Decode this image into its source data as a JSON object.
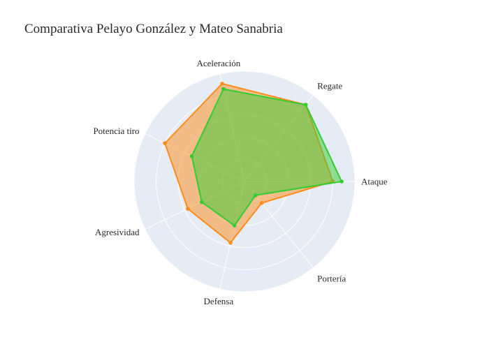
{
  "chart_data": {
    "type": "radar",
    "title": "Comparativa Pelayo González y Mateo Sanabria",
    "axes": [
      "Ataque",
      "Regate",
      "Aceleración",
      "Potencia tiro",
      "Agresividad",
      "Defensa",
      "Portería"
    ],
    "range": [
      0,
      100
    ],
    "grid": true,
    "legend": "none",
    "series": [
      {
        "values": [
          80,
          89,
          91,
          80,
          57,
          57,
          25
        ],
        "color": "#ff8c1a",
        "fill": "rgba(255,140,26,0.5)"
      },
      {
        "values": [
          88,
          89,
          86,
          53,
          43,
          41,
          16
        ],
        "color": "#33cc33",
        "fill": "rgba(51,204,51,0.5)"
      }
    ]
  },
  "colors": {
    "polar_bg": "#e5ecf6",
    "grid": "#ffffff"
  }
}
